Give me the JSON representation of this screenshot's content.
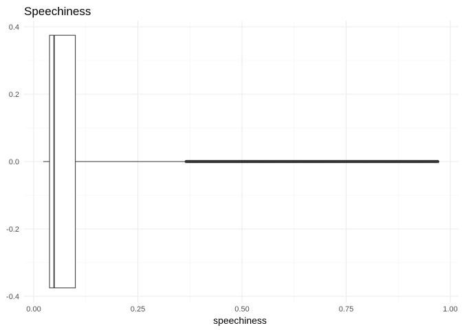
{
  "chart_data": {
    "type": "boxplot",
    "orientation": "horizontal",
    "title": "Speechiness",
    "xlabel": "speechiness",
    "ylabel": "",
    "xlim": [
      0,
      1
    ],
    "ylim": [
      -0.4,
      0.4
    ],
    "x_ticks": [
      0.0,
      0.25,
      0.5,
      0.75,
      1.0
    ],
    "x_tick_labels": [
      "0.00",
      "0.25",
      "0.50",
      "0.75",
      "1.00"
    ],
    "y_ticks": [
      0.4,
      0.2,
      0.0,
      -0.2,
      -0.4
    ],
    "y_tick_labels": [
      "0.4",
      "0.2",
      "0.0",
      "-0.2",
      "-0.4"
    ],
    "grid": true,
    "box": {
      "whisker_low": 0.023,
      "q1": 0.038,
      "median": 0.049,
      "q3": 0.1,
      "whisker_high": 0.366,
      "outliers_range": [
        0.366,
        0.97
      ],
      "box_ymin": -0.375,
      "box_ymax": 0.375,
      "y_center": 0.0
    },
    "colors": {
      "box_stroke": "#333333",
      "outliers": "#333333",
      "box_fill": "#ffffff"
    }
  }
}
